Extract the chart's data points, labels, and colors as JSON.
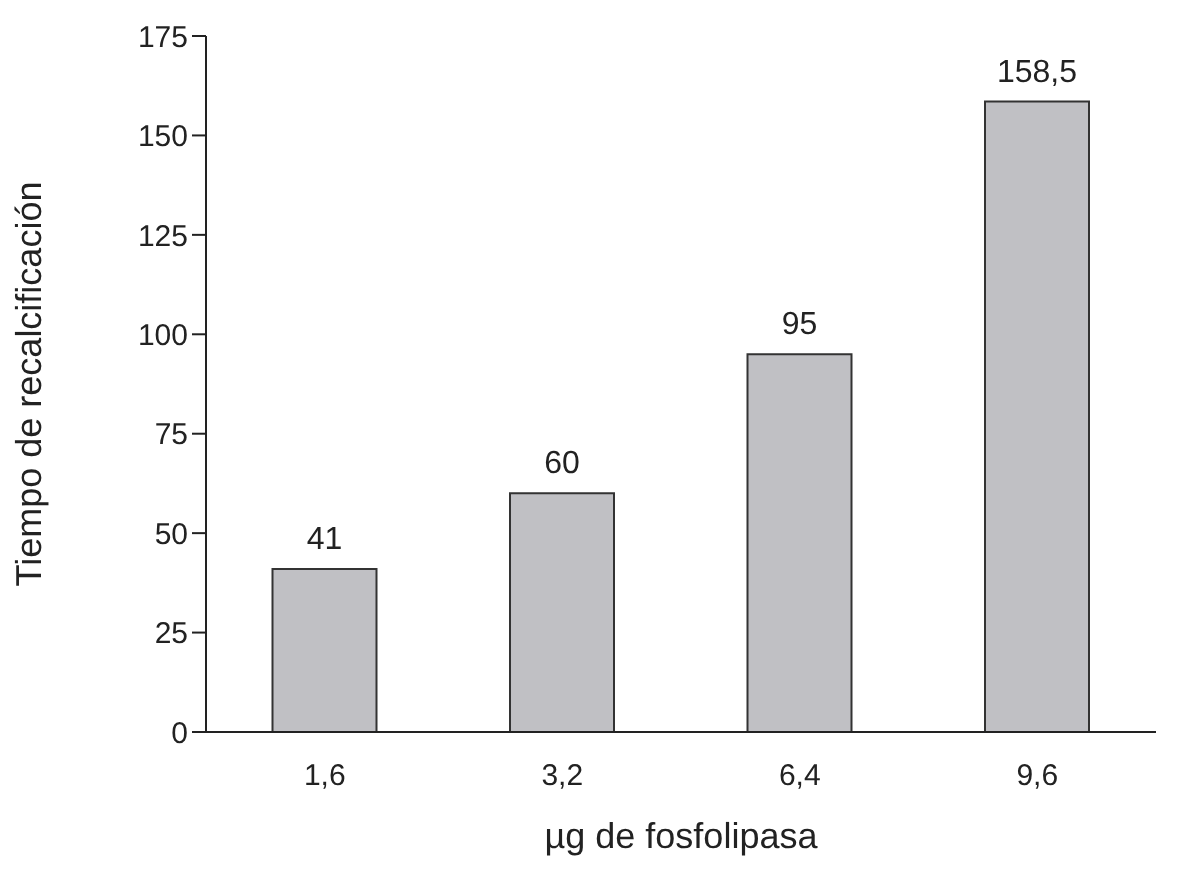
{
  "chart_data": {
    "type": "bar",
    "xlabel": "µg de fosfolipasa",
    "ylabel": "Tiempo de recalcificación",
    "categories": [
      "1,6",
      "3,2",
      "6,4",
      "9,6"
    ],
    "values": [
      41,
      60,
      95,
      158.5
    ],
    "value_labels": [
      "41",
      "60",
      "95",
      "158,5"
    ],
    "color": "#c0c0c4",
    "ylim": [
      0,
      175
    ],
    "yticks": [
      0,
      25,
      50,
      75,
      100,
      125,
      150,
      175
    ],
    "grid": false,
    "legend": false
  }
}
